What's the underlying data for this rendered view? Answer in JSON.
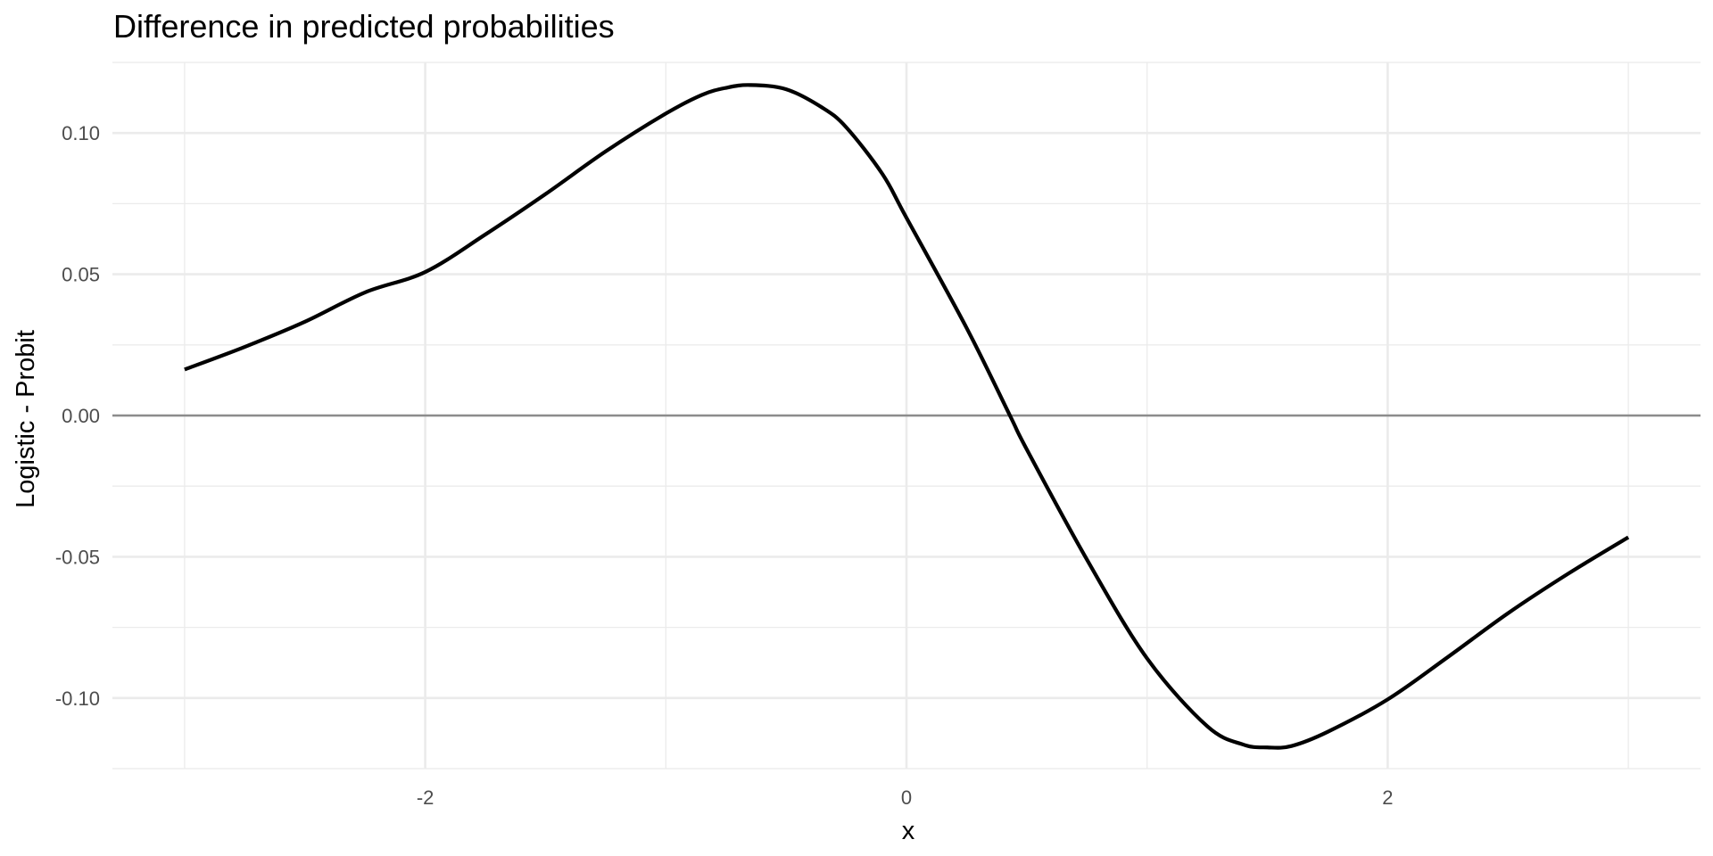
{
  "chart_data": {
    "type": "line",
    "title": "Difference in predicted probabilities",
    "xlabel": "x",
    "ylabel": "Logistic - Probit",
    "xlim": [
      -3.3,
      3.3
    ],
    "ylim": [
      -0.125,
      0.125
    ],
    "x_ticks": [
      -2,
      0,
      2
    ],
    "x_tick_labels": [
      "-2",
      "0",
      "2"
    ],
    "x_minor_ticks": [
      -3,
      -1,
      1,
      3
    ],
    "y_ticks": [
      -0.1,
      -0.05,
      0.0,
      0.05,
      0.1
    ],
    "y_tick_labels": [
      "-0.10",
      "-0.05",
      "0.00",
      "0.05",
      "0.10"
    ],
    "y_minor_ticks": [
      -0.125,
      -0.075,
      -0.025,
      0.025,
      0.075,
      0.125
    ],
    "hline": 0,
    "grid": true,
    "series": [
      {
        "color": "#000000",
        "x": [
          -3.0,
          -2.75,
          -2.5,
          -2.25,
          -2.0,
          -1.75,
          -1.5,
          -1.25,
          -1.0,
          -0.85,
          -0.75,
          -0.65,
          -0.5,
          -0.35,
          -0.25,
          -0.1,
          0.0,
          0.25,
          0.43,
          0.5,
          0.75,
          1.0,
          1.25,
          1.4,
          1.5,
          1.6,
          1.75,
          2.0,
          2.25,
          2.5,
          2.75,
          3.0
        ],
        "y": [
          0.0163,
          0.0243,
          0.0332,
          0.0436,
          0.0508,
          0.0641,
          0.0784,
          0.0935,
          0.1069,
          0.1135,
          0.116,
          0.117,
          0.1155,
          0.109,
          0.102,
          0.0855,
          0.07,
          0.031,
          0.0,
          -0.012,
          -0.051,
          -0.086,
          -0.11,
          -0.1165,
          -0.1175,
          -0.117,
          -0.112,
          -0.1005,
          -0.0855,
          -0.07,
          -0.056,
          -0.0431
        ]
      }
    ]
  }
}
